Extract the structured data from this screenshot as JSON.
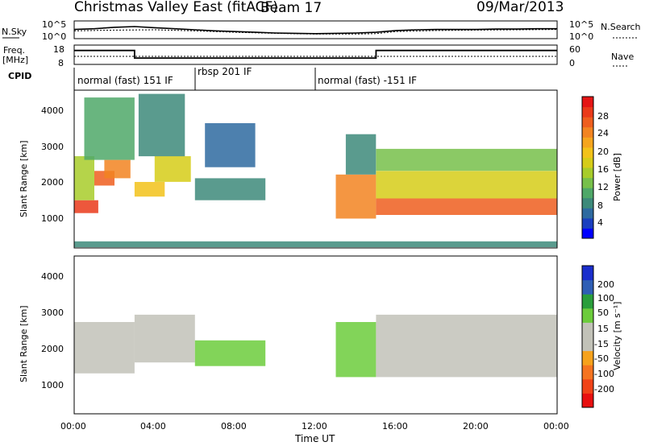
{
  "header": {
    "station": "Christmas Valley East (fitACF)",
    "beam": "Beam 17",
    "date": "09/Mar/2013"
  },
  "left_labels": {
    "nsky": "N.Sky",
    "freq_line1": "Freq.",
    "freq_line2": "[MHz]",
    "cpid": "CPID"
  },
  "right_labels": {
    "nsearch": "N.Search",
    "nave": "Nave"
  },
  "cpid_segments": [
    {
      "label": "normal (fast) 151 IF",
      "start": 0
    },
    {
      "label": "rbsp 201 IF",
      "start": 6
    },
    {
      "label": "normal (fast) -151 IF",
      "start": 12
    }
  ],
  "colorbars": {
    "power": {
      "label": "Power [dB]",
      "ticks": [
        "28",
        "24",
        "20",
        "16",
        "12",
        "8",
        "4"
      ],
      "colors": [
        "#0000ff",
        "#1a3fbf",
        "#2e6aa0",
        "#3d8a7a",
        "#4fa868",
        "#77c04a",
        "#a8cc2a",
        "#d6cc18",
        "#f2c21a",
        "#f5a51e",
        "#f28421",
        "#ee5e1e",
        "#ea3a1a",
        "#e51515"
      ]
    },
    "velocity": {
      "label": "Velocity [m s⁻¹]",
      "ticks": [
        "200",
        "100",
        "50",
        "15",
        "-15",
        "-50",
        "-100",
        "-200"
      ],
      "colors": [
        "#e81010",
        "#f04318",
        "#f57420",
        "#f6a21c",
        "#c2c2b8",
        "#c2c2b8",
        "#6ccc3c",
        "#2a9e3c",
        "#2f5fb5",
        "#1a2ecc"
      ]
    }
  },
  "chart_data": [
    {
      "type": "line",
      "title": "N.Sky / N.Search",
      "ylim": [
        0,
        5
      ],
      "yticks_left": [
        "10^5",
        "10^0"
      ],
      "yticks_right": [
        "10^5",
        "10^0"
      ],
      "series": [
        {
          "name": "N.Sky",
          "x": [
            0,
            1,
            2,
            3,
            4,
            5,
            6,
            7,
            8,
            9,
            10,
            11,
            12,
            13,
            14,
            15,
            16,
            17,
            18,
            19,
            20,
            21,
            22,
            23,
            24
          ],
          "values": [
            2.6,
            2.8,
            3.2,
            3.4,
            3.1,
            2.8,
            2.5,
            2.2,
            2.0,
            1.8,
            1.6,
            1.5,
            1.4,
            1.5,
            1.6,
            1.8,
            2.3,
            2.5,
            2.6,
            2.6,
            2.6,
            2.7,
            2.7,
            2.8,
            2.8
          ]
        },
        {
          "name": "N.Search",
          "x": [
            0,
            2,
            4,
            6,
            8,
            10,
            12,
            14,
            15,
            16,
            18,
            20,
            22,
            24
          ],
          "values": [
            2.2,
            2.4,
            2.5,
            2.2,
            1.8,
            1.5,
            1.3,
            1.3,
            1.4,
            2.0,
            2.3,
            2.4,
            2.5,
            2.6
          ]
        }
      ]
    },
    {
      "type": "line",
      "title": "Freq. / Nave",
      "ylim_left": [
        8,
        18
      ],
      "ylim_right": [
        0,
        60
      ],
      "yticks_left": [
        "18",
        "8"
      ],
      "yticks_right": [
        "60",
        "0"
      ],
      "series": [
        {
          "name": "Freq.",
          "x": [
            0,
            3,
            3.001,
            15,
            15.001,
            24
          ],
          "values": [
            15.2,
            15.2,
            11.3,
            11.3,
            15.2,
            15.2
          ]
        },
        {
          "name": "Nave",
          "x": [
            0,
            24
          ],
          "values": [
            25,
            25
          ]
        }
      ]
    },
    {
      "type": "heatmap",
      "title": "Power [dB]",
      "ylabel": "Slant Range [km]",
      "xlim": [
        0,
        24
      ],
      "ylim": [
        200,
        4500
      ],
      "yticks": [
        "1000",
        "2000",
        "3000",
        "4000"
      ],
      "colorbar_ticks": [
        "28",
        "24",
        "20",
        "16",
        "12",
        "8",
        "4"
      ],
      "regions": [
        {
          "t0": 0.0,
          "t1": 1.2,
          "r0": 1150,
          "r1": 1500,
          "value": 27
        },
        {
          "t0": 0.0,
          "t1": 1.0,
          "r0": 1500,
          "r1": 2700,
          "value": 14
        },
        {
          "t0": 1.0,
          "t1": 2.0,
          "r0": 1900,
          "r1": 2300,
          "value": 26
        },
        {
          "t0": 1.5,
          "t1": 2.8,
          "r0": 2100,
          "r1": 2600,
          "value": 22
        },
        {
          "t0": 0.5,
          "t1": 3.0,
          "r0": 2600,
          "r1": 4300,
          "value": 9
        },
        {
          "t0": 3.0,
          "t1": 4.5,
          "r0": 1600,
          "r1": 2000,
          "value": 18
        },
        {
          "t0": 4.0,
          "t1": 5.8,
          "r0": 2000,
          "r1": 2700,
          "value": 17
        },
        {
          "t0": 3.2,
          "t1": 5.5,
          "r0": 2700,
          "r1": 4400,
          "value": 8
        },
        {
          "t0": 6.0,
          "t1": 9.5,
          "r0": 1500,
          "r1": 2100,
          "value": 7
        },
        {
          "t0": 6.5,
          "t1": 9.0,
          "r0": 2400,
          "r1": 3600,
          "value": 5
        },
        {
          "t0": 13.0,
          "t1": 15.0,
          "r0": 1000,
          "r1": 2200,
          "value": 22
        },
        {
          "t0": 13.5,
          "t1": 15.0,
          "r0": 2200,
          "r1": 3300,
          "value": 8
        },
        {
          "t0": 15.0,
          "t1": 24.0,
          "r0": 1100,
          "r1": 1550,
          "value": 26
        },
        {
          "t0": 15.0,
          "t1": 24.0,
          "r0": 1550,
          "r1": 2300,
          "value": 17
        },
        {
          "t0": 15.0,
          "t1": 24.0,
          "r0": 2300,
          "r1": 2900,
          "value": 12
        },
        {
          "t0": 0.0,
          "t1": 24.0,
          "r0": 220,
          "r1": 380,
          "value": 6
        }
      ]
    },
    {
      "type": "heatmap",
      "title": "Velocity [m s⁻¹]",
      "xlabel": "Time UT",
      "ylabel": "Slant Range [km]",
      "xlim": [
        0,
        24
      ],
      "ylim": [
        200,
        4500
      ],
      "yticks": [
        "1000",
        "2000",
        "3000",
        "4000"
      ],
      "xticks": [
        "00:00",
        "04:00",
        "08:00",
        "12:00",
        "16:00",
        "20:00",
        "00:00"
      ],
      "colorbar_ticks": [
        "200",
        "100",
        "50",
        "15",
        "-15",
        "-50",
        "-100",
        "-200"
      ],
      "regions": [
        {
          "t0": 0.0,
          "t1": 3.0,
          "r0": 1300,
          "r1": 2700,
          "value": 0
        },
        {
          "t0": 3.0,
          "t1": 6.0,
          "r0": 1600,
          "r1": 2900,
          "value": 0
        },
        {
          "t0": 6.0,
          "t1": 9.5,
          "r0": 1500,
          "r1": 2200,
          "value": 40
        },
        {
          "t0": 13.0,
          "t1": 15.0,
          "r0": 1200,
          "r1": 2700,
          "value": 40
        },
        {
          "t0": 15.0,
          "t1": 24.0,
          "r0": 1200,
          "r1": 2900,
          "value": 0
        }
      ]
    }
  ],
  "axes": {
    "xlabel": "Time UT",
    "xticks": [
      "00:00",
      "04:00",
      "08:00",
      "12:00",
      "16:00",
      "20:00",
      "00:00"
    ],
    "slant_label": "Slant Range [km]"
  }
}
